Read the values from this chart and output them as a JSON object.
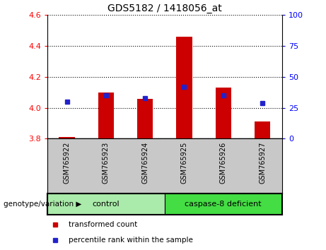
{
  "title": "GDS5182 / 1418056_at",
  "samples": [
    "GSM765922",
    "GSM765923",
    "GSM765924",
    "GSM765925",
    "GSM765926",
    "GSM765927"
  ],
  "transformed_count": [
    3.81,
    4.1,
    4.06,
    4.46,
    4.13,
    3.91
  ],
  "percentile_rank_pct": [
    30,
    35,
    33,
    42,
    35,
    29
  ],
  "ylim_left": [
    3.8,
    4.6
  ],
  "ylim_right": [
    0,
    100
  ],
  "yticks_left": [
    3.8,
    4.0,
    4.2,
    4.4,
    4.6
  ],
  "yticks_right": [
    0,
    25,
    50,
    75,
    100
  ],
  "bar_color": "#CC0000",
  "marker_color": "#2222CC",
  "bar_bottom": 3.8,
  "group_label": "genotype/variation",
  "groups": [
    {
      "label": "control",
      "indices": [
        0,
        1,
        2
      ],
      "color": "#AAEAAA"
    },
    {
      "label": "caspase-8 deficient",
      "indices": [
        3,
        4,
        5
      ],
      "color": "#44DD44"
    }
  ],
  "legend_items": [
    {
      "label": "transformed count",
      "color": "#CC0000"
    },
    {
      "label": "percentile rank within the sample",
      "color": "#2222CC"
    }
  ],
  "bg_plot": "#FFFFFF",
  "bg_xtick": "#C8C8C8",
  "grid_linestyle": "dotted",
  "grid_color": "#000000"
}
